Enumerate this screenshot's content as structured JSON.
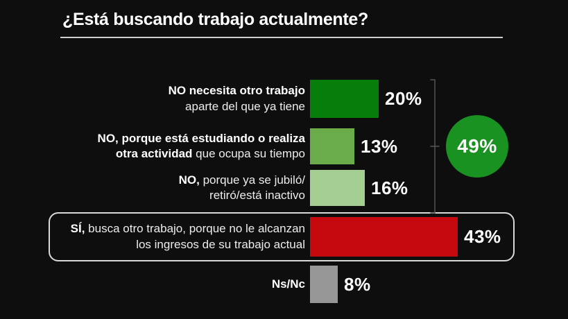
{
  "title": "¿Está buscando trabajo actualmente?",
  "rows": [
    {
      "lines": [
        {
          "bold": "NO necesita otro trabajo",
          "regular": ""
        },
        {
          "bold": "",
          "regular": "aparte del que ya tiene"
        }
      ],
      "value": 20,
      "value_label": "20%",
      "color": "#077d0a"
    },
    {
      "lines": [
        {
          "bold": "NO, porque está estudiando o realiza",
          "regular": ""
        },
        {
          "bold": "otra actividad",
          "regular": " que ocupa su tiempo"
        }
      ],
      "value": 13,
      "value_label": "13%",
      "color": "#6aab4a"
    },
    {
      "lines": [
        {
          "bold": "NO,",
          "regular": " porque ya se jubiló/"
        },
        {
          "bold": "",
          "regular": "retiró/está inactivo"
        }
      ],
      "value": 16,
      "value_label": "16%",
      "color": "#a5cf92"
    },
    {
      "lines": [
        {
          "bold": "SÍ,",
          "regular": " busca otro trabajo, porque no le alcanzan"
        },
        {
          "bold": "",
          "regular": "los ingresos de su trabajo actual"
        }
      ],
      "value": 43,
      "value_label": "43%",
      "color": "#c5090e",
      "highlighted": true
    },
    {
      "lines": [
        {
          "bold": "Ns/Nc",
          "regular": ""
        }
      ],
      "value": 8,
      "value_label": "8%",
      "color": "#969696"
    }
  ],
  "annotation": {
    "value_label": "49%",
    "color": "#1a9221"
  },
  "chart_data": {
    "type": "bar",
    "orientation": "horizontal",
    "title": "¿Está buscando trabajo actualmente?",
    "categories": [
      "NO necesita otro trabajo aparte del que ya tiene",
      "NO, porque está estudiando o realiza otra actividad que ocupa su tiempo",
      "NO, porque ya se jubiló/retiró/está inactivo",
      "SÍ, busca otro trabajo, porque no le alcanzan los ingresos de su trabajo actual",
      "Ns/Nc"
    ],
    "values": [
      20,
      13,
      16,
      43,
      8
    ],
    "data_labels": [
      "20%",
      "13%",
      "16%",
      "43%",
      "8%"
    ],
    "unit": "%",
    "bar_colors": [
      "#077d0a",
      "#6aab4a",
      "#a5cf92",
      "#c5090e",
      "#969696"
    ],
    "background_color": "#0e0e0e",
    "axis": "none",
    "grid": false,
    "legend": false,
    "highlighted_category_index": 3,
    "annotations": [
      {
        "text": "49%",
        "shape": "circle-badge",
        "color": "#1a9221",
        "groups_category_indices": [
          0,
          1,
          2
        ]
      }
    ]
  }
}
